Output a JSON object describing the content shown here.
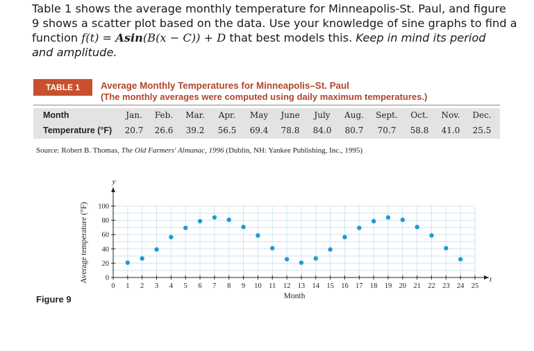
{
  "prompt": {
    "line1": "Table 1 shows the average monthly temperature for Minneapolis-St. Paul, and figure",
    "line2": "9 shows a scatter plot based on the data. Use your knowledge of sine graphs to find a",
    "line3a": "function ",
    "line3_func": "f(t) = ",
    "line3_bold": "Asin",
    "line3_rest": "(B(x − C)) + D",
    "line3b": " that best models this. ",
    "line3_emph": "Keep in mind its period",
    "line4_emph": "and amplitude."
  },
  "table": {
    "tag": "TABLE 1",
    "title": "Average Monthly Temperatures for Minneapolis–St. Paul",
    "subtitle": "(The monthly averages were computed using daily maximum temperatures.)",
    "row_labels": [
      "Month",
      "Temperature (°F)"
    ],
    "months": [
      "Jan.",
      "Feb.",
      "Mar.",
      "Apr.",
      "May",
      "June",
      "July",
      "Aug.",
      "Sept.",
      "Oct.",
      "Nov.",
      "Dec."
    ],
    "temps": [
      "20.7",
      "26.6",
      "39.2",
      "56.5",
      "69.4",
      "78.8",
      "84.0",
      "80.7",
      "70.7",
      "58.8",
      "41.0",
      "25.5"
    ]
  },
  "source": {
    "prefix": "Source: Robert B. Thomas, ",
    "title": "The Old Farmers' Almanac, 1996",
    "suffix": " (Dublin, NH: Yankee Publishing, Inc., 1995)"
  },
  "figure_label": "Figure 9",
  "chart_data": {
    "type": "scatter",
    "xlabel": "Month",
    "ylabel": "Average temperature (°F)",
    "x_axis_var": "t",
    "y_axis_var": "y",
    "xlim": [
      0,
      25
    ],
    "ylim": [
      0,
      100
    ],
    "xticks": [
      0,
      1,
      2,
      3,
      4,
      5,
      6,
      7,
      8,
      9,
      10,
      11,
      12,
      13,
      14,
      15,
      16,
      17,
      18,
      19,
      20,
      21,
      22,
      23,
      24,
      25
    ],
    "yticks": [
      0,
      20,
      40,
      60,
      80,
      100
    ],
    "grid": true,
    "point_color": "#1e9ad6",
    "points": [
      [
        1,
        20.7
      ],
      [
        2,
        26.6
      ],
      [
        3,
        39.2
      ],
      [
        4,
        56.5
      ],
      [
        5,
        69.4
      ],
      [
        6,
        78.8
      ],
      [
        7,
        84.0
      ],
      [
        8,
        80.7
      ],
      [
        9,
        70.7
      ],
      [
        10,
        58.8
      ],
      [
        11,
        41.0
      ],
      [
        12,
        25.5
      ],
      [
        13,
        20.7
      ],
      [
        14,
        26.6
      ],
      [
        15,
        39.2
      ],
      [
        16,
        56.5
      ],
      [
        17,
        69.4
      ],
      [
        18,
        78.8
      ],
      [
        19,
        84.0
      ],
      [
        20,
        80.7
      ],
      [
        21,
        70.7
      ],
      [
        22,
        58.8
      ],
      [
        23,
        41.0
      ],
      [
        24,
        25.5
      ]
    ]
  }
}
